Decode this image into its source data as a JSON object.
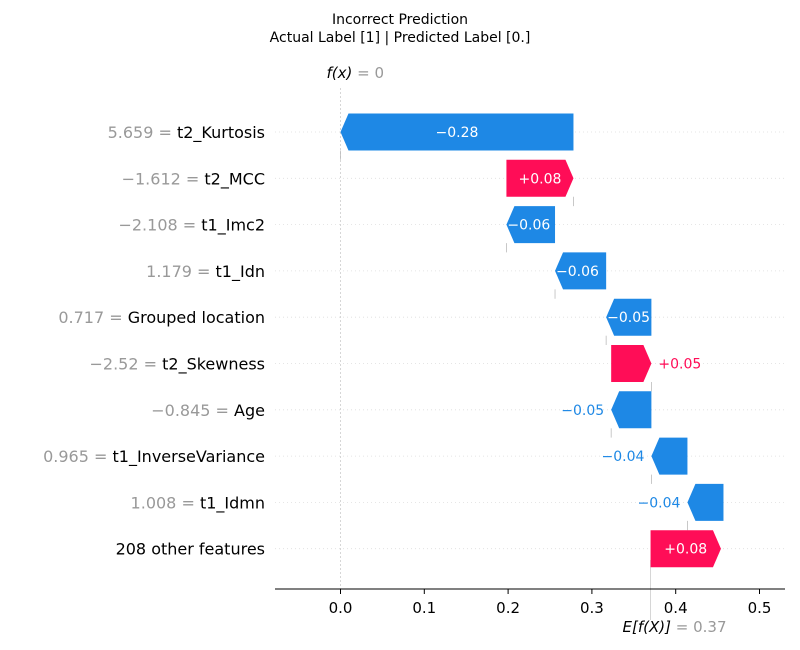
{
  "chart_data": {
    "type": "waterfall",
    "title_line1": "Incorrect Prediction",
    "title_line2": "Actual Label [1] | Predicted Label [0.]",
    "fx_label": "f(x)",
    "fx_value": "= 0",
    "efx_label": "E[f(X)]",
    "efx_value": "= 0.37",
    "base_value": 0.37,
    "final_value": 0,
    "xlim": [
      -0.08,
      0.53
    ],
    "xticks": [
      "0.0",
      "0.1",
      "0.2",
      "0.3",
      "0.4",
      "0.5"
    ],
    "xtick_values": [
      0.0,
      0.1,
      0.2,
      0.3,
      0.4,
      0.5
    ],
    "colors": {
      "positive": "#ff0d57",
      "negative": "#1e88e5",
      "axis": "#000000",
      "muted": "#999999"
    },
    "features": [
      {
        "value": "5.659",
        "name": "t2_Kurtosis",
        "label": "−0.28",
        "start": 0.278,
        "end": 0.0
      },
      {
        "value": "−1.612",
        "name": "t2_MCC",
        "label": "+0.08",
        "start": 0.198,
        "end": 0.278
      },
      {
        "value": "−2.108",
        "name": "t1_Imc2",
        "label": "−0.06",
        "start": 0.256,
        "end": 0.198
      },
      {
        "value": "1.179",
        "name": "t1_Idn",
        "label": "−0.06",
        "start": 0.317,
        "end": 0.256
      },
      {
        "value": "0.717",
        "name": "Grouped location",
        "label": "−0.05",
        "start": 0.371,
        "end": 0.317
      },
      {
        "value": "−2.52",
        "name": "t2_Skewness",
        "label": "+0.05",
        "start": 0.323,
        "end": 0.371
      },
      {
        "value": "−0.845",
        "name": "Age",
        "label": "−0.05",
        "start": 0.371,
        "end": 0.323
      },
      {
        "value": "0.965",
        "name": "t1_InverseVariance",
        "label": "−0.04",
        "start": 0.414,
        "end": 0.371
      },
      {
        "value": "1.008",
        "name": "t1_Idmn",
        "label": "−0.04",
        "start": 0.457,
        "end": 0.414
      },
      {
        "value": "",
        "name": "208 other features",
        "label": "+0.08",
        "start": 0.37,
        "end": 0.454
      }
    ]
  }
}
